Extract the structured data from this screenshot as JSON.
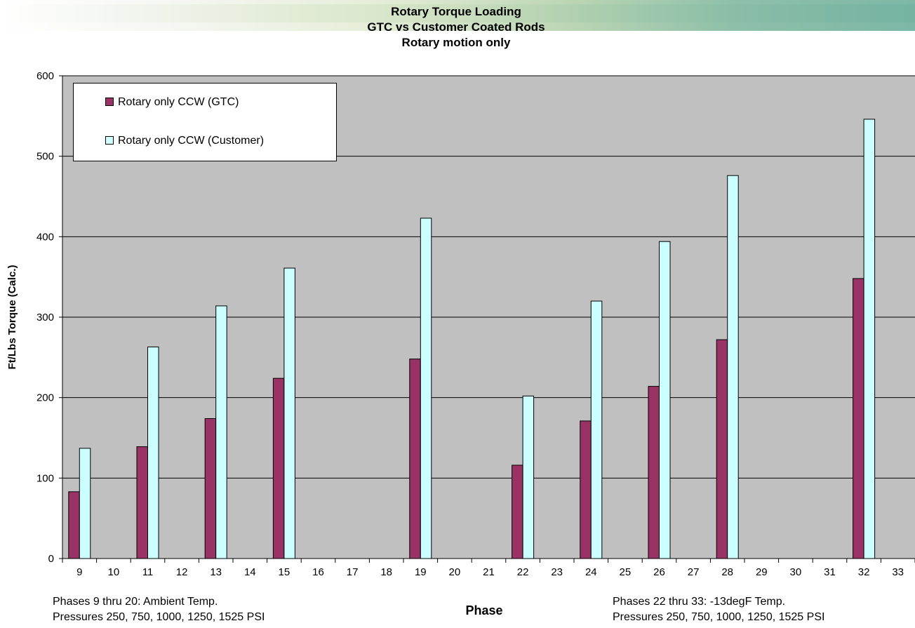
{
  "chart_data": {
    "type": "bar",
    "title": [
      "Rotary Torque Loading",
      "GTC vs Customer Coated Rods",
      "Rotary motion only"
    ],
    "xlabel": "Phase",
    "ylabel": "Ft/Lbs Torque (Calc.)",
    "ylim": [
      0,
      600
    ],
    "yticks": [
      0,
      100,
      200,
      300,
      400,
      500,
      600
    ],
    "grid": true,
    "legend_position": "top-left",
    "categories": [
      "9",
      "10",
      "11",
      "12",
      "13",
      "14",
      "15",
      "16",
      "17",
      "18",
      "19",
      "20",
      "21",
      "22",
      "23",
      "24",
      "25",
      "26",
      "27",
      "28",
      "29",
      "30",
      "31",
      "32",
      "33"
    ],
    "series": [
      {
        "name": "Rotary only CCW (GTC)",
        "color": "#993366",
        "values": [
          83,
          null,
          139,
          null,
          174,
          null,
          224,
          null,
          null,
          null,
          248,
          null,
          null,
          116,
          null,
          171,
          null,
          214,
          null,
          272,
          null,
          null,
          null,
          348,
          null
        ]
      },
      {
        "name": "Rotary only CCW (Customer)",
        "color": "#ccffff",
        "values": [
          137,
          null,
          263,
          null,
          314,
          null,
          361,
          null,
          null,
          null,
          423,
          null,
          null,
          202,
          null,
          320,
          null,
          394,
          null,
          476,
          null,
          null,
          null,
          546,
          null
        ]
      }
    ],
    "plot_background": "#c0c0c0",
    "annotations": {
      "left": [
        "Phases 9 thru 20: Ambient Temp.",
        "Pressures 250, 750, 1000, 1250, 1525 PSI"
      ],
      "right": [
        "Phases 22 thru 33: -13degF Temp.",
        "Pressures 250, 750, 1000, 1250, 1525 PSI"
      ]
    }
  }
}
